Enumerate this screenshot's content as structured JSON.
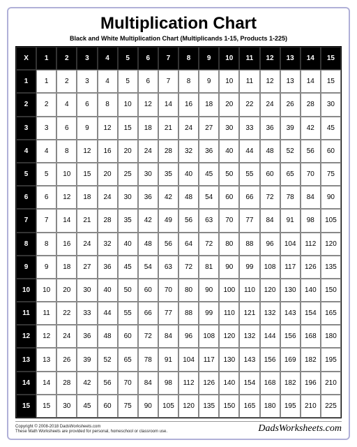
{
  "title": "Multiplication Chart",
  "title_fontsize": 24,
  "subtitle": "Black and White Multiplication Chart (Multiplicands 1-15, Products 1-225)",
  "subtitle_fontsize": 9,
  "corner_label": "X",
  "range": {
    "min": 1,
    "max": 15
  },
  "columns": [
    1,
    2,
    3,
    4,
    5,
    6,
    7,
    8,
    9,
    10,
    11,
    12,
    13,
    14,
    15
  ],
  "rows": [
    1,
    2,
    3,
    4,
    5,
    6,
    7,
    8,
    9,
    10,
    11,
    12,
    13,
    14,
    15
  ],
  "styling": {
    "page_border_color": "#b0b0d8",
    "page_border_width": 2,
    "page_border_radius": 6,
    "header_bg": "#000000",
    "header_text": "#ffffff",
    "cell_bg": "#ffffff",
    "cell_text": "#000000",
    "cell_border": "#888888",
    "cell_fontsize": 10,
    "header_fontweight": "bold"
  },
  "footer": {
    "copyright": "Copyright © 2008-2018 DadsWorksheets.com",
    "tagline": "These Math Worksheets are provided for personal, homeschool or classroom use.",
    "brand": "DadsWorksheets.com"
  }
}
